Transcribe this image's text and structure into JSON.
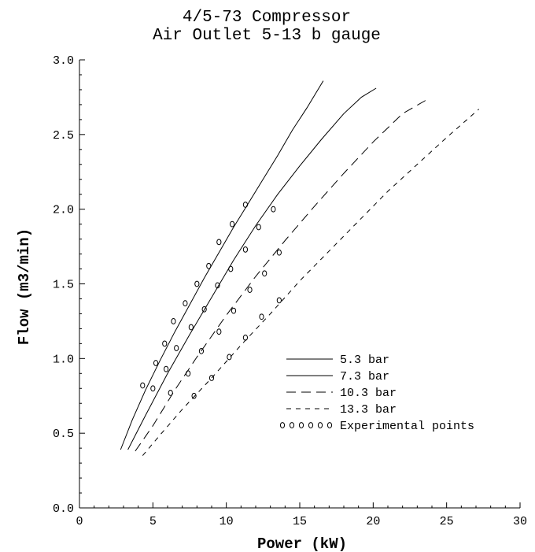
{
  "chart_data": {
    "type": "line",
    "title": "4/5-73 Compressor",
    "subtitle": "Air Outlet 5-13 b gauge",
    "xlabel": "Power (kW)",
    "ylabel": "Flow (m3/min)",
    "xlim": [
      0,
      30
    ],
    "ylim": [
      0,
      3
    ],
    "x_ticks": [
      0,
      5,
      10,
      15,
      20,
      25,
      30
    ],
    "y_ticks": [
      0.0,
      0.5,
      1.0,
      1.5,
      2.0,
      2.5,
      3.0
    ],
    "x_tick_labels": [
      "0",
      "5",
      "10",
      "15",
      "20",
      "25",
      "30"
    ],
    "y_tick_labels": [
      "0.0",
      "0.5",
      "1.0",
      "1.5",
      "2.0",
      "2.5",
      "3.0"
    ],
    "grid": false,
    "legend_position": "right-center",
    "series": [
      {
        "name": "5.3 bar",
        "style": "solid",
        "x": [
          2.8,
          3.6,
          4.5,
          5.5,
          6.5,
          7.5,
          8.5,
          9.5,
          10.5,
          11.5,
          12.5,
          13.5,
          14.5,
          15.5,
          16.6
        ],
        "y": [
          0.39,
          0.59,
          0.79,
          0.99,
          1.18,
          1.36,
          1.54,
          1.71,
          1.88,
          2.04,
          2.2,
          2.36,
          2.53,
          2.68,
          2.86
        ]
      },
      {
        "name": "7.3 bar",
        "style": "solid",
        "x": [
          3.3,
          4.5,
          6.0,
          7.5,
          9.0,
          10.5,
          12.0,
          13.5,
          15.0,
          16.5,
          18.0,
          19.2,
          20.2
        ],
        "y": [
          0.39,
          0.62,
          0.9,
          1.16,
          1.41,
          1.66,
          1.89,
          2.1,
          2.29,
          2.47,
          2.64,
          2.75,
          2.81
        ]
      },
      {
        "name": "10.3 bar",
        "style": "long-dash",
        "x": [
          3.8,
          5.0,
          6.5,
          8.0,
          10.0,
          12.0,
          14.0,
          16.0,
          18.0,
          20.0,
          22.0,
          23.6
        ],
        "y": [
          0.38,
          0.55,
          0.79,
          1.01,
          1.29,
          1.55,
          1.79,
          2.02,
          2.24,
          2.45,
          2.64,
          2.73
        ]
      },
      {
        "name": "13.3 bar",
        "style": "short-dash",
        "x": [
          4.3,
          5.5,
          7.0,
          9.0,
          11.0,
          13.0,
          15.0,
          17.0,
          19.0,
          21.0,
          23.0,
          25.0,
          27.2
        ],
        "y": [
          0.35,
          0.49,
          0.66,
          0.87,
          1.09,
          1.3,
          1.52,
          1.72,
          1.92,
          2.12,
          2.3,
          2.48,
          2.67
        ]
      },
      {
        "name": "Experimental points",
        "style": "markers",
        "x": [
          4.3,
          5.2,
          5.8,
          6.4,
          7.2,
          8.0,
          8.8,
          9.5,
          10.4,
          11.3,
          5.0,
          5.9,
          6.6,
          7.6,
          8.5,
          9.4,
          10.3,
          11.3,
          12.2,
          13.2,
          6.2,
          7.4,
          8.3,
          9.5,
          10.5,
          11.6,
          12.6,
          13.6,
          7.8,
          9.0,
          10.2,
          11.3,
          12.4,
          13.6
        ],
        "y": [
          0.82,
          0.97,
          1.1,
          1.25,
          1.37,
          1.5,
          1.62,
          1.78,
          1.9,
          2.03,
          0.8,
          0.93,
          1.07,
          1.21,
          1.33,
          1.49,
          1.6,
          1.73,
          1.88,
          2.0,
          0.77,
          0.9,
          1.05,
          1.18,
          1.32,
          1.46,
          1.57,
          1.71,
          0.75,
          0.87,
          1.01,
          1.14,
          1.28,
          1.39
        ]
      }
    ]
  }
}
